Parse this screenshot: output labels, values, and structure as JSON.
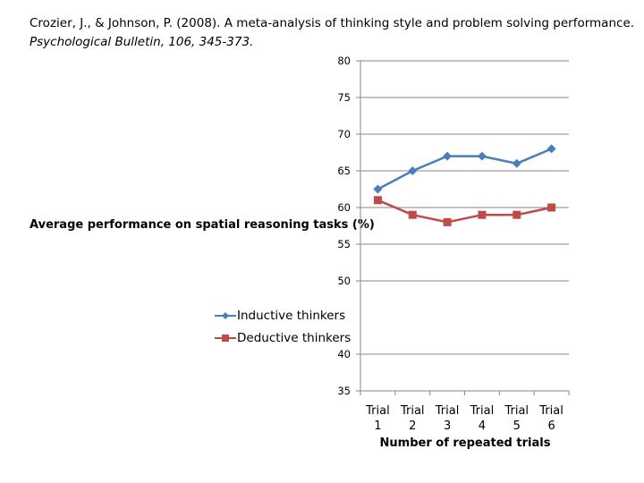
{
  "citation": {
    "line1": "Crozier, J., & Johnson, P. (2008). A meta-analysis of thinking style and problem solving performance.",
    "line2": "Psychological Bulletin, 106, 345-373."
  },
  "chart_data": {
    "type": "line",
    "title": "",
    "ylabel": "Average performance on spatial reasoning tasks (%)",
    "xlabel": "Number of repeated trials",
    "categories": [
      "Trial 1",
      "Trial 2",
      "Trial 3",
      "Trial 4",
      "Trial 5",
      "Trial 6"
    ],
    "category_lines": [
      [
        "Trial",
        "1"
      ],
      [
        "Trial",
        "2"
      ],
      [
        "Trial",
        "3"
      ],
      [
        "Trial",
        "4"
      ],
      [
        "Trial",
        "5"
      ],
      [
        "Trial",
        "6"
      ]
    ],
    "ylim": [
      35,
      80
    ],
    "yticks": [
      35,
      40,
      50,
      55,
      60,
      65,
      70,
      75,
      80
    ],
    "grid": true,
    "legend_position": "middle-left",
    "series": [
      {
        "name": "Inductive thinkers",
        "color": "#4a7ebb",
        "marker": "diamond",
        "values": [
          62.5,
          65,
          67,
          67,
          66,
          68
        ]
      },
      {
        "name": "Deductive thinkers",
        "color": "#be4b48",
        "marker": "square",
        "values": [
          61,
          59,
          58,
          59,
          59,
          60
        ]
      }
    ]
  }
}
